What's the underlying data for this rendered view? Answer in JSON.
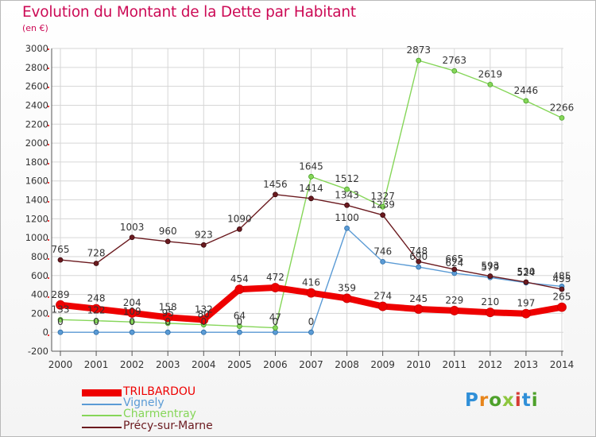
{
  "header": {
    "title": "Evolution du Montant de la Dette par Habitant",
    "unit": "(en €)"
  },
  "logo": {
    "text": "Proxiti",
    "colors": [
      "#2f8fd8",
      "#e7851b",
      "#4ea12b",
      "#8ec63f",
      "#d63b34",
      "#2f8fd8",
      "#4ea12b"
    ]
  },
  "chart_data": {
    "type": "line",
    "title": "Evolution du Montant de la Dette par Habitant",
    "subtitle": "(en €)",
    "xlabel": "",
    "ylabel": "",
    "x": [
      "2000",
      "2001",
      "2002",
      "2003",
      "2004",
      "2005",
      "2006",
      "2007",
      "2008",
      "2009",
      "2010",
      "2011",
      "2012",
      "2013",
      "2014"
    ],
    "ylim": [
      -200,
      3000
    ],
    "yticks": [
      -200,
      0,
      200,
      400,
      600,
      800,
      1000,
      1200,
      1400,
      1600,
      1800,
      2000,
      2200,
      2400,
      2600,
      2800,
      3000
    ],
    "grid": true,
    "legend_position": "bottom-left",
    "series": [
      {
        "name": "TRILBARDOU",
        "color": "#ee0000",
        "values": [
          289,
          248,
          204,
          158,
          132,
          454,
          472,
          416,
          359,
          274,
          245,
          229,
          210,
          197,
          265
        ],
        "labels": [
          "289",
          "248",
          "204",
          "158",
          "132",
          "454",
          "472",
          "416",
          "359",
          "274",
          "245",
          "229",
          "210",
          "197",
          "265"
        ]
      },
      {
        "name": "Vignely",
        "color": "#5b9bd5",
        "values": [
          0,
          0,
          0,
          0,
          0,
          0,
          0,
          0,
          1100,
          746,
          690,
          624,
          579,
          524,
          485
        ],
        "labels": [
          "0",
          "0",
          "0",
          "0",
          "0",
          "0",
          "0",
          "0",
          "1100",
          "746",
          "690",
          "624",
          "579",
          "524",
          "485"
        ]
      },
      {
        "name": "Charmentray",
        "color": "#86d659",
        "values": [
          133,
          122,
          109,
          95,
          80,
          64,
          47,
          1645,
          1512,
          1327,
          2873,
          2763,
          2619,
          2446,
          2266
        ],
        "labels": [
          "133",
          "122",
          "109",
          "95",
          "80",
          "64",
          "47",
          "1645",
          "1512",
          "1327",
          "2873",
          "2763",
          "2619",
          "2446",
          "2266"
        ]
      },
      {
        "name": "Précy-sur-Marne",
        "color": "#6b1a1f",
        "values": [
          765,
          728,
          1003,
          960,
          923,
          1090,
          1456,
          1414,
          1343,
          1239,
          748,
          665,
          593,
          530,
          455
        ],
        "labels": [
          "765",
          "728",
          "1003",
          "960",
          "923",
          "1090",
          "1456",
          "1414",
          "1343",
          "1239",
          "748",
          "665",
          "593",
          "530",
          "455"
        ]
      }
    ]
  }
}
